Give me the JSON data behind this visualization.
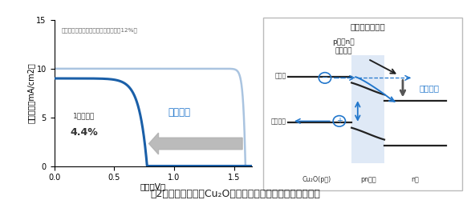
{
  "fig_width": 5.87,
  "fig_height": 2.5,
  "bg_color": "#ffffff",
  "title_text": "図2：前回の透過型Cu₂O太陽電池における電圧低下の原因",
  "left_panel": {
    "ylabel": "電流密度（mA/cm2）",
    "xlabel": "電圧（V）",
    "ylim": [
      0,
      15
    ],
    "xlim": [
      0,
      1.65
    ],
    "yticks": [
      0,
      5,
      10,
      15
    ],
    "xticks": [
      0,
      0.5,
      1.0,
      1.5
    ],
    "ideal_label": "トップセル理想特性（計算例は効率＞12%）",
    "ideal_color": "#aac4e0",
    "actual_color": "#1a5fa8",
    "voltage_drop_label": "電圧低下",
    "voltage_drop_color": "#2277cc",
    "efficiency_label": "1月発表時",
    "efficiency_value": "4.4%",
    "efficiency_color": "#333333"
  },
  "right_panel": {
    "box_color": "#aaaaaa",
    "title": "電圧低下の原因",
    "label_p_n": "p層とn層\nの電位差",
    "label_conduction": "伝導帯",
    "label_valence": "価電子帯",
    "label_cu2o": "Cu₂O(p層)",
    "label_pn": "pn界面",
    "label_n": "n層",
    "label_voltage_drop": "電圧低下",
    "band_color": "#222222",
    "blue_color": "#2277cc",
    "light_blue": "#c5d8f0",
    "arrow_gray": "#999999",
    "dark_arrow": "#555555"
  }
}
